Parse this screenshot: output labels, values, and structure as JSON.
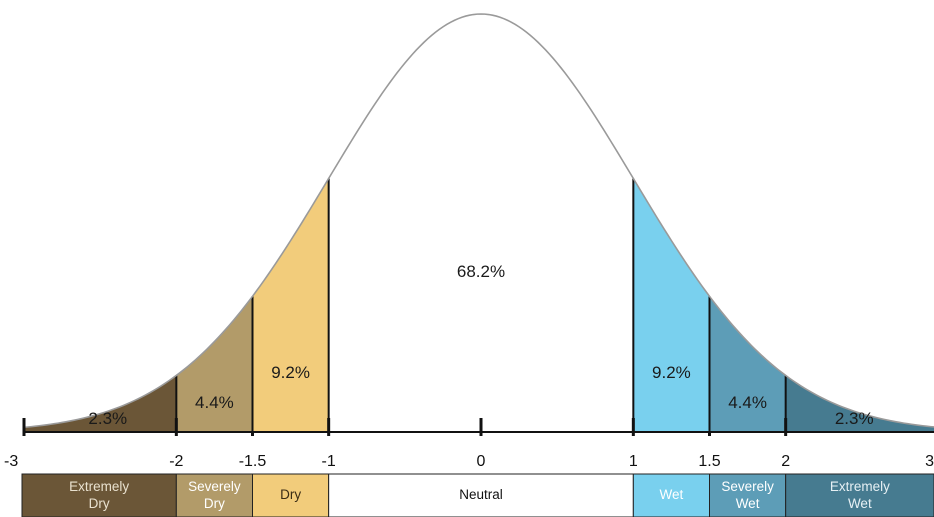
{
  "chart_data": {
    "type": "area",
    "title": "",
    "xlabel": "",
    "ylabel": "",
    "xlim": [
      -3,
      3
    ],
    "ticks": [
      {
        "value": -3,
        "label": "-3"
      },
      {
        "value": -2,
        "label": "-2"
      },
      {
        "value": -1.5,
        "label": "-1.5"
      },
      {
        "value": -1,
        "label": "-1"
      },
      {
        "value": 0,
        "label": "0"
      },
      {
        "value": 1,
        "label": "1"
      },
      {
        "value": 1.5,
        "label": "1.5"
      },
      {
        "value": 2,
        "label": "2"
      },
      {
        "value": 3,
        "label": "3"
      }
    ],
    "regions": [
      {
        "id": "extremely-dry",
        "from": -3,
        "to": -2,
        "percent": "2.3%",
        "category": [
          "Extremely",
          "Dry"
        ],
        "color": "#6b5637",
        "band_color": "#6b5637",
        "text_color": "#e9e1cf",
        "pct_x": -2.45
      },
      {
        "id": "severely-dry",
        "from": -2,
        "to": -1.5,
        "percent": "4.4%",
        "category": [
          "Severely",
          "Dry"
        ],
        "color": "#b29b69",
        "band_color": "#b29b69",
        "text_color": "#ffffff",
        "pct_x": -1.75
      },
      {
        "id": "dry",
        "from": -1.5,
        "to": -1,
        "percent": "9.2%",
        "category": [
          "Dry"
        ],
        "color": "#f2cc7b",
        "band_color": "#f2cc7b",
        "text_color": "#3a2c14",
        "pct_x": -1.25
      },
      {
        "id": "neutral",
        "from": -1,
        "to": 1,
        "percent": "68.2%",
        "category": [
          "Neutral"
        ],
        "color": "#ffffff",
        "band_color": "#ffffff",
        "text_color": "#111111",
        "pct_x": 0
      },
      {
        "id": "wet",
        "from": 1,
        "to": 1.5,
        "percent": "9.2%",
        "category": [
          "Wet"
        ],
        "color": "#79d0ee",
        "band_color": "#79d0ee",
        "text_color": "#ffffff",
        "pct_x": 1.25
      },
      {
        "id": "severely-wet",
        "from": 1.5,
        "to": 2,
        "percent": "4.4%",
        "category": [
          "Severely",
          "Wet"
        ],
        "color": "#5d9db7",
        "band_color": "#5d9db7",
        "text_color": "#ffffff",
        "pct_x": 1.75
      },
      {
        "id": "extremely-wet",
        "from": 2,
        "to": 3,
        "percent": "2.3%",
        "category": [
          "Extremely",
          "Wet"
        ],
        "color": "#467b90",
        "band_color": "#467b90",
        "text_color": "#e6f0f4",
        "pct_x": 2.45
      }
    ],
    "curve_color": "#9a9a9a",
    "grid": false,
    "legend": "none"
  }
}
